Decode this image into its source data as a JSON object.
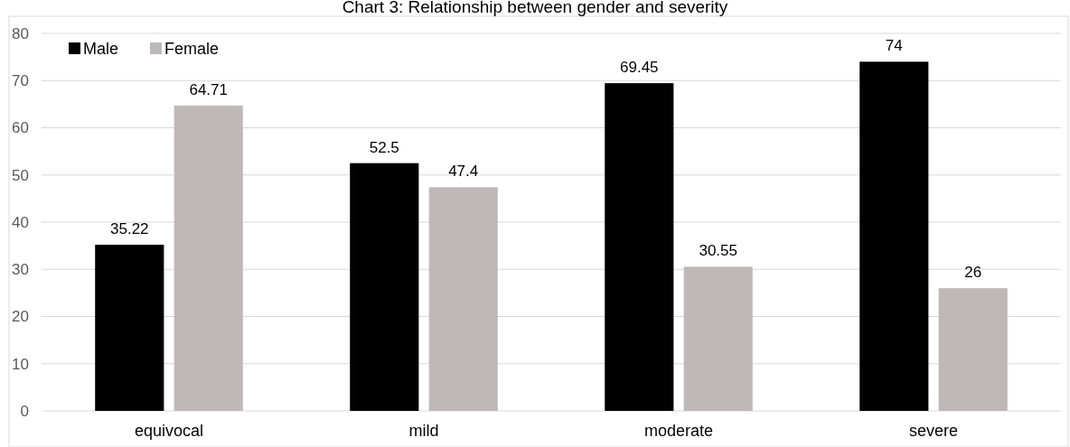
{
  "chart_data": {
    "type": "bar",
    "title": "Chart 3: Relationship between gender and severity",
    "categories": [
      "equivocal",
      "mild",
      "moderate",
      "severe"
    ],
    "series": [
      {
        "name": "Male",
        "color": "#000000",
        "values": [
          35.22,
          52.5,
          69.45,
          74
        ]
      },
      {
        "name": "Female",
        "color": "#bfb8b8",
        "values": [
          64.71,
          47.4,
          30.55,
          26
        ]
      }
    ],
    "ylim": [
      0,
      80
    ],
    "yticks": [
      0,
      10,
      20,
      30,
      40,
      50,
      60,
      70,
      80
    ],
    "grid": "y",
    "legend": "top left",
    "data_labels": true
  }
}
